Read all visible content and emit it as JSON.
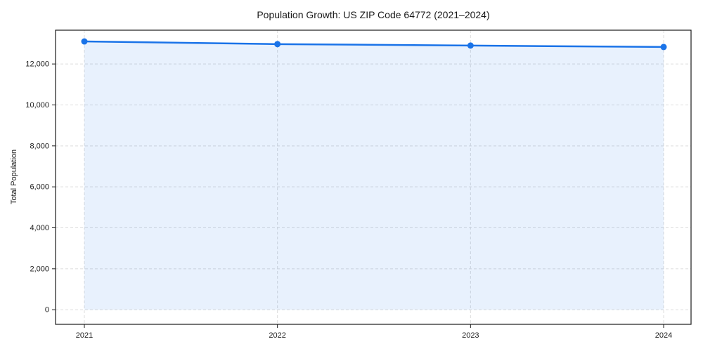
{
  "chart_data": {
    "type": "line",
    "title": "Population Growth: US ZIP Code 64772 (2021–2024)",
    "xlabel": "",
    "ylabel": "Total Population",
    "x": [
      2021,
      2022,
      2023,
      2024
    ],
    "xtick_labels": [
      "2021",
      "2022",
      "2023",
      "2024"
    ],
    "series": [
      {
        "name": "Total Population",
        "values": [
          13100,
          12970,
          12900,
          12830
        ]
      }
    ],
    "yticks": [
      0,
      2000,
      4000,
      6000,
      8000,
      10000,
      12000
    ],
    "ytick_labels": [
      "0",
      "2,000",
      "4,000",
      "6,000",
      "8,000",
      "10,000",
      "12,000"
    ],
    "ylim": [
      0,
      13650
    ],
    "grid": "both-dashed",
    "legend": "none",
    "marker": "circle",
    "area_fill": true,
    "colors": {
      "line": "#1a73e8",
      "marker": "#1a73e8",
      "area_fill": "rgba(26,115,232,0.10)",
      "grid": "#dcdcdc",
      "spine": "#1a1a1a",
      "text": "#1a1a1a",
      "background": "#ffffff"
    }
  }
}
